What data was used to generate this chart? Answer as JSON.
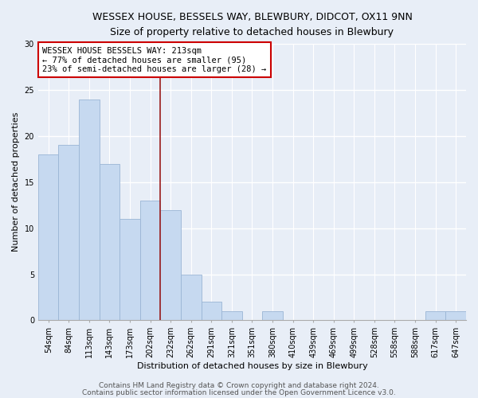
{
  "title": "WESSEX HOUSE, BESSELS WAY, BLEWBURY, DIDCOT, OX11 9NN",
  "subtitle": "Size of property relative to detached houses in Blewbury",
  "xlabel": "Distribution of detached houses by size in Blewbury",
  "ylabel": "Number of detached properties",
  "categories": [
    "54sqm",
    "84sqm",
    "113sqm",
    "143sqm",
    "173sqm",
    "202sqm",
    "232sqm",
    "262sqm",
    "291sqm",
    "321sqm",
    "351sqm",
    "380sqm",
    "410sqm",
    "439sqm",
    "469sqm",
    "499sqm",
    "528sqm",
    "558sqm",
    "588sqm",
    "617sqm",
    "647sqm"
  ],
  "values": [
    18,
    19,
    24,
    17,
    11,
    13,
    12,
    5,
    2,
    1,
    0,
    1,
    0,
    0,
    0,
    0,
    0,
    0,
    0,
    1,
    1
  ],
  "bar_color": "#c6d9f0",
  "bar_edge_color": "#9ab5d5",
  "red_line_x": 5.5,
  "annotation_title": "WESSEX HOUSE BESSELS WAY: 213sqm",
  "annotation_line1": "← 77% of detached houses are smaller (95)",
  "annotation_line2": "23% of semi-detached houses are larger (28) →",
  "annotation_box_color": "#ffffff",
  "annotation_box_edge": "#cc0000",
  "red_line_color": "#9b1c1c",
  "ylim": [
    0,
    30
  ],
  "yticks": [
    0,
    5,
    10,
    15,
    20,
    25,
    30
  ],
  "footer1": "Contains HM Land Registry data © Crown copyright and database right 2024.",
  "footer2": "Contains public sector information licensed under the Open Government Licence v3.0.",
  "background_color": "#e8eef7",
  "grid_color": "#ffffff",
  "title_fontsize": 9,
  "subtitle_fontsize": 8.5,
  "label_fontsize": 8,
  "tick_fontsize": 7,
  "annotation_fontsize": 7.5,
  "footer_fontsize": 6.5
}
